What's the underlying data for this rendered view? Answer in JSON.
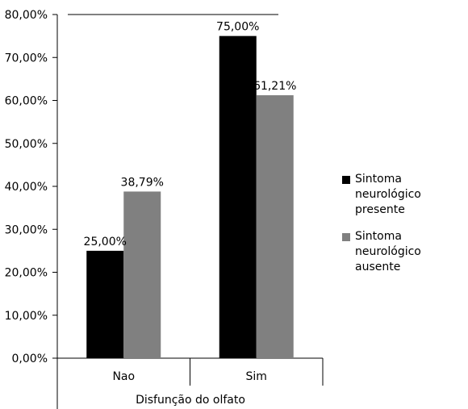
{
  "chart_data": {
    "type": "bar",
    "title": "",
    "xlabel": "Disfunção do olfato",
    "ylabel": "",
    "categories": [
      "Nao",
      "Sim"
    ],
    "series": [
      {
        "name": "Sintoma neurológico presente",
        "values": [
          25.0,
          75.0
        ],
        "labels": [
          "25,00%",
          "75,00%"
        ],
        "color": "#000000"
      },
      {
        "name": "Sintoma neurológico ausente",
        "values": [
          38.79,
          61.21
        ],
        "labels": [
          "38,79%",
          "61,21%"
        ],
        "color": "#808080"
      }
    ],
    "ylim": [
      0,
      80
    ],
    "y_ticks": [
      "0,00%",
      "10,00%",
      "20,00%",
      "30,00%",
      "40,00%",
      "50,00%",
      "60,00%",
      "70,00%",
      "80,00%"
    ],
    "grid": false,
    "legend_position": "right"
  }
}
